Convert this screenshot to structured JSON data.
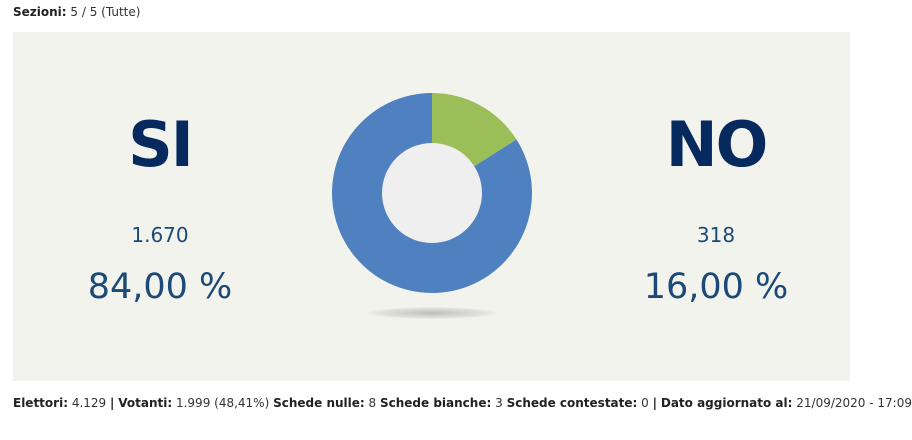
{
  "sections": {
    "label": "Sezioni:",
    "value": "5 / 5 (Tutte)"
  },
  "chart_data": {
    "type": "pie",
    "categories": [
      "SI",
      "NO"
    ],
    "values": [
      1670,
      318
    ],
    "percent_labels": [
      "84,00 %",
      "16,00 %"
    ],
    "vote_labels": [
      "1.670",
      "318"
    ],
    "colors": [
      "#4f80c0",
      "#9bbe59"
    ],
    "hole_color": "#efefef"
  },
  "footer": {
    "electors_label": "Elettori:",
    "electors_value": "4.129",
    "sep1": "|",
    "voters_label": "Votanti:",
    "voters_value": "1.999 (48,41%)",
    "null_label": "Schede nulle:",
    "null_value": "8",
    "blank_label": "Schede bianche:",
    "blank_value": "3",
    "contested_label": "Schede contestate:",
    "contested_value": "0",
    "sep2": "|",
    "updated_label": "Dato aggiornato al:",
    "updated_value": "21/09/2020 - 17:09"
  }
}
